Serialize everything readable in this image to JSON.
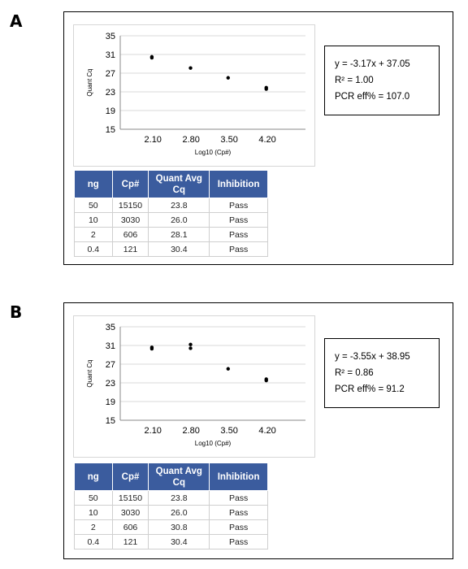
{
  "panels": [
    {
      "letter": "A",
      "equation": {
        "line1": "y = -3.17x + 37.05",
        "line2": "R² = 1.00",
        "line3": "PCR eff% = 107.0"
      },
      "table": {
        "headers": [
          "ng",
          "Cp#",
          "Quant Avg Cq",
          "Inhibition"
        ],
        "rows": [
          [
            "50",
            "15150",
            "23.8",
            "Pass"
          ],
          [
            "10",
            "3030",
            "26.0",
            "Pass"
          ],
          [
            "2",
            "606",
            "28.1",
            "Pass"
          ],
          [
            "0.4",
            "121",
            "30.4",
            "Pass"
          ]
        ]
      }
    },
    {
      "letter": "B",
      "equation": {
        "line1": "y = -3.55x + 38.95",
        "line2": "R² = 0.86",
        "line3": "PCR eff% = 91.2"
      },
      "table": {
        "headers": [
          "ng",
          "Cp#",
          "Quant Avg Cq",
          "Inhibition"
        ],
        "rows": [
          [
            "50",
            "15150",
            "23.8",
            "Pass"
          ],
          [
            "10",
            "3030",
            "26.0",
            "Pass"
          ],
          [
            "2",
            "606",
            "30.8",
            "Pass"
          ],
          [
            "0.4",
            "121",
            "30.4",
            "Pass"
          ]
        ]
      }
    }
  ],
  "chart_data": [
    {
      "type": "scatter",
      "title": "",
      "xlabel": "Log10 (Cp#)",
      "ylabel": "Quant Cq",
      "xticks": [
        "2.10",
        "2.80",
        "3.50",
        "4.20"
      ],
      "xtick_values": [
        2.1,
        2.8,
        3.5,
        4.2
      ],
      "xlim": [
        1.5,
        4.9
      ],
      "yticks": [
        "35",
        "31",
        "27",
        "23",
        "19",
        "15"
      ],
      "ytick_values": [
        35,
        31,
        27,
        23,
        19,
        15
      ],
      "ylim": [
        15,
        35
      ],
      "grid": "horizontal",
      "legend": "none",
      "point_color": "#000000",
      "points": [
        {
          "x": 2.08,
          "y": 30.5
        },
        {
          "x": 2.08,
          "y": 30.3
        },
        {
          "x": 2.79,
          "y": 28.1
        },
        {
          "x": 3.48,
          "y": 26.0
        },
        {
          "x": 4.18,
          "y": 23.9
        },
        {
          "x": 4.18,
          "y": 23.6
        }
      ]
    },
    {
      "type": "scatter",
      "title": "",
      "xlabel": "Log10 (Cp#)",
      "ylabel": "Quant Cq",
      "xticks": [
        "2.10",
        "2.80",
        "3.50",
        "4.20"
      ],
      "xtick_values": [
        2.1,
        2.8,
        3.5,
        4.2
      ],
      "xlim": [
        1.5,
        4.9
      ],
      "yticks": [
        "35",
        "31",
        "27",
        "23",
        "19",
        "15"
      ],
      "ytick_values": [
        35,
        31,
        27,
        23,
        19,
        15
      ],
      "ylim": [
        15,
        35
      ],
      "grid": "horizontal",
      "legend": "none",
      "point_color": "#000000",
      "points": [
        {
          "x": 2.08,
          "y": 30.6
        },
        {
          "x": 2.08,
          "y": 30.3
        },
        {
          "x": 2.79,
          "y": 31.2
        },
        {
          "x": 2.79,
          "y": 30.4
        },
        {
          "x": 3.48,
          "y": 26.0
        },
        {
          "x": 4.18,
          "y": 23.8
        },
        {
          "x": 4.18,
          "y": 23.5
        }
      ]
    }
  ]
}
